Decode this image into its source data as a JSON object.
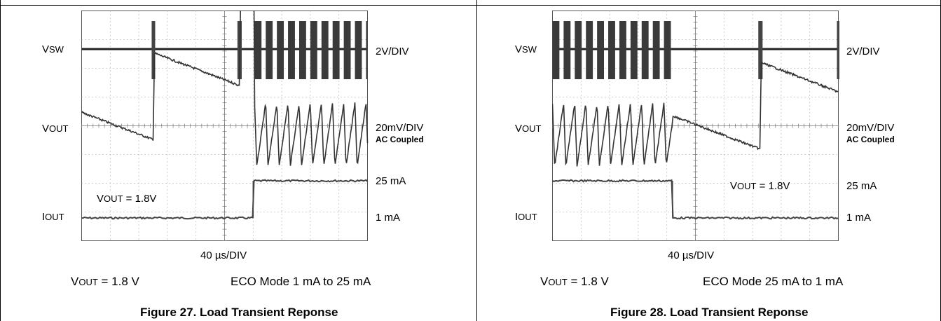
{
  "figures": [
    {
      "channels": {
        "vsw": "V",
        "vsw_sub": "SW",
        "vout": "V",
        "vout_sub": "OUT",
        "iout": "I",
        "iout_sub": "OUT"
      },
      "scales": {
        "vsw": "2V/DIV",
        "vout": "20mV/DIV",
        "vout_note": "AC Coupled",
        "i_high": "25 mA",
        "i_low": "1 mA"
      },
      "annotation": {
        "text": "V",
        "sub": "OUT",
        "rest": " = 1.8V"
      },
      "time_scale": "40 µs/DIV",
      "condition_left": {
        "text": "V",
        "sub": "OUT",
        "rest": " = 1.8 V"
      },
      "condition_right": "ECO Mode 1 mA to 25 mA",
      "caption": "Figure 27. Load Transient Reponse"
    },
    {
      "channels": {
        "vsw": "V",
        "vsw_sub": "SW",
        "vout": "V",
        "vout_sub": "OUT",
        "iout": "I",
        "iout_sub": "OUT"
      },
      "scales": {
        "vsw": "2V/DIV",
        "vout": "20mV/DIV",
        "vout_note": "AC Coupled",
        "i_high": "25 mA",
        "i_low": "1 mA"
      },
      "annotation": {
        "text": "V",
        "sub": "OUT",
        "rest": " = 1.8V"
      },
      "time_scale": "40 µs/DIV",
      "condition_left": {
        "text": "V",
        "sub": "OUT",
        "rest": " = 1.8 V"
      },
      "condition_right": "ECO Mode 25 mA to 1 mA",
      "caption": "Figure 28. Load Transient Reponse"
    }
  ],
  "chart_data": [
    {
      "type": "line",
      "grid": true,
      "x_divisions": 10,
      "y_divisions": 8,
      "x_unit_per_div_us": 40,
      "series": [
        {
          "name": "VSW",
          "scale": "2V/DIV",
          "bursts_div": [
            [
              2.45,
              2.55
            ],
            [
              5.45,
              5.6
            ],
            [
              6.05,
              10.0
            ]
          ]
        },
        {
          "name": "VOUT",
          "scale": "20mV/DIV",
          "mode": "ECO",
          "ripple_period_div": 0.39
        },
        {
          "name": "IOUT",
          "low_mA": 1,
          "high_mA": 25,
          "step_at_div": 6.0
        }
      ]
    },
    {
      "type": "line",
      "grid": true,
      "x_divisions": 10,
      "y_divisions": 8,
      "x_unit_per_div_us": 40,
      "series": [
        {
          "name": "VSW",
          "scale": "2V/DIV",
          "bursts_div": [
            [
              0.0,
              4.2
            ],
            [
              7.2,
              7.35
            ],
            [
              9.95,
              10.0
            ]
          ]
        },
        {
          "name": "VOUT",
          "scale": "20mV/DIV",
          "mode": "ECO",
          "ripple_period_div": 0.39
        },
        {
          "name": "IOUT",
          "low_mA": 1,
          "high_mA": 25,
          "step_at_div": 4.2
        }
      ]
    }
  ]
}
